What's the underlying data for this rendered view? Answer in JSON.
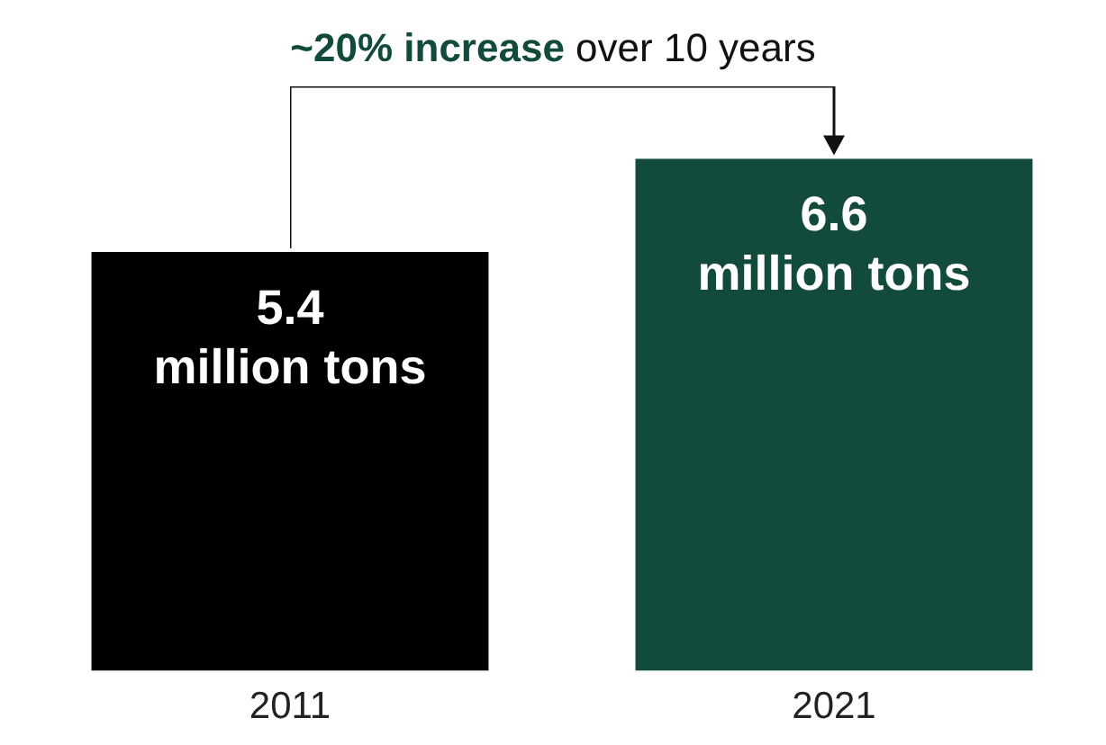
{
  "chart_data": {
    "type": "bar",
    "categories": [
      "2011",
      "2021"
    ],
    "values": [
      5.4,
      6.6
    ],
    "colors": [
      "#000000",
      "#124a3b"
    ],
    "value_labels": [
      "5.4 million tons",
      "6.6 million tons"
    ],
    "annotations": [
      "~20% increase over 10 years"
    ],
    "tick_labels": "x",
    "grid": false,
    "legend": false
  }
}
